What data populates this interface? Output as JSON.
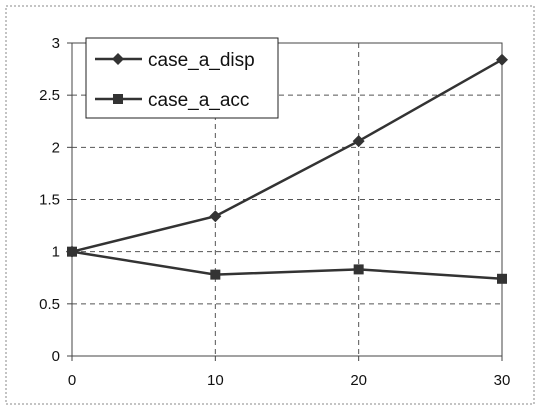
{
  "chart_data": {
    "type": "line",
    "x": [
      0,
      10,
      20,
      30
    ],
    "series": [
      {
        "name": "case_a_disp",
        "marker": "diamond",
        "values": [
          1.0,
          1.34,
          2.06,
          2.84
        ]
      },
      {
        "name": "case_a_acc",
        "marker": "square",
        "values": [
          1.0,
          0.78,
          0.83,
          0.74
        ]
      }
    ],
    "xlim": [
      0,
      30
    ],
    "ylim": [
      0,
      3
    ],
    "x_ticks": [
      "0",
      "10",
      "20",
      "30"
    ],
    "y_ticks": [
      "0",
      "0.5",
      "1",
      "1.5",
      "2",
      "2.5",
      "3"
    ],
    "grid": true,
    "legend": "top-left",
    "title": "",
    "xlabel": "",
    "ylabel": "",
    "colors": {
      "line": "#333333",
      "grid": "#555555",
      "frame": "#444444"
    }
  }
}
